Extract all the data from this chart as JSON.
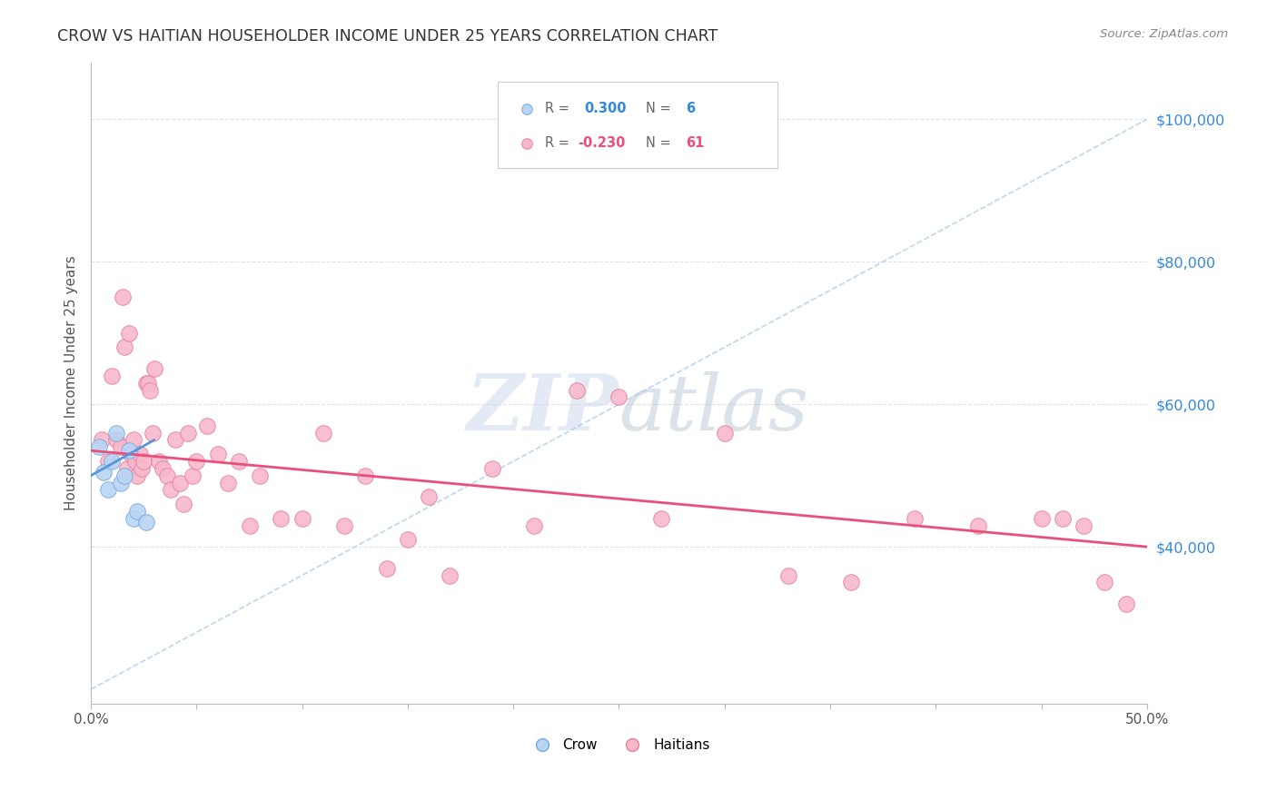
{
  "title": "CROW VS HAITIAN HOUSEHOLDER INCOME UNDER 25 YEARS CORRELATION CHART",
  "source": "Source: ZipAtlas.com",
  "ylabel": "Householder Income Under 25 years",
  "xlim": [
    0.0,
    0.5
  ],
  "ylim": [
    18000,
    108000
  ],
  "yticks": [
    40000,
    60000,
    80000,
    100000
  ],
  "ytick_labels": [
    "$40,000",
    "$60,000",
    "$80,000",
    "$100,000"
  ],
  "xticks": [
    0.0,
    0.05,
    0.1,
    0.15,
    0.2,
    0.25,
    0.3,
    0.35,
    0.4,
    0.45,
    0.5
  ],
  "xtick_labels": [
    "0.0%",
    "",
    "",
    "",
    "",
    "",
    "",
    "",
    "",
    "",
    "50.0%"
  ],
  "crow_color": "#b8d4f5",
  "haitian_color": "#f7b8cc",
  "crow_edge_color": "#7aaad8",
  "haitian_edge_color": "#e8809a",
  "crow_line_color": "#5599dd",
  "haitian_line_color": "#e8507a",
  "dashed_line_color": "#aaccee",
  "background_color": "#ffffff",
  "grid_color": "#e0e0ee",
  "watermark_color": "#ccdaed",
  "crow_x": [
    0.004,
    0.006,
    0.008,
    0.01,
    0.012,
    0.014,
    0.016,
    0.018,
    0.02,
    0.022,
    0.026
  ],
  "crow_y": [
    54000,
    50500,
    48000,
    52000,
    56000,
    49000,
    50000,
    53500,
    44000,
    45000,
    43500
  ],
  "haitian_x": [
    0.005,
    0.008,
    0.01,
    0.012,
    0.014,
    0.015,
    0.016,
    0.017,
    0.018,
    0.019,
    0.02,
    0.021,
    0.022,
    0.023,
    0.024,
    0.025,
    0.026,
    0.027,
    0.028,
    0.029,
    0.03,
    0.032,
    0.034,
    0.036,
    0.038,
    0.04,
    0.042,
    0.044,
    0.046,
    0.048,
    0.05,
    0.055,
    0.06,
    0.065,
    0.07,
    0.075,
    0.08,
    0.09,
    0.1,
    0.11,
    0.12,
    0.13,
    0.14,
    0.15,
    0.16,
    0.17,
    0.19,
    0.21,
    0.23,
    0.25,
    0.27,
    0.3,
    0.33,
    0.36,
    0.39,
    0.42,
    0.45,
    0.46,
    0.47,
    0.48,
    0.49
  ],
  "haitian_y": [
    55000,
    52000,
    64000,
    55000,
    54000,
    75000,
    68000,
    51000,
    70000,
    53000,
    55000,
    52000,
    50000,
    53000,
    51000,
    52000,
    63000,
    63000,
    62000,
    56000,
    65000,
    52000,
    51000,
    50000,
    48000,
    55000,
    49000,
    46000,
    56000,
    50000,
    52000,
    57000,
    53000,
    49000,
    52000,
    43000,
    50000,
    44000,
    44000,
    56000,
    43000,
    50000,
    37000,
    41000,
    47000,
    36000,
    51000,
    43000,
    62000,
    61000,
    44000,
    56000,
    36000,
    35000,
    44000,
    43000,
    44000,
    44000,
    43000,
    35000,
    32000
  ],
  "haitian_line_x": [
    0.0,
    0.5
  ],
  "haitian_line_y": [
    53500,
    40000
  ],
  "crow_line_x": [
    0.0,
    0.03
  ],
  "crow_line_y": [
    50000,
    55000
  ],
  "dashed_line_x": [
    0.0,
    0.5
  ],
  "dashed_line_y": [
    20000,
    100000
  ]
}
